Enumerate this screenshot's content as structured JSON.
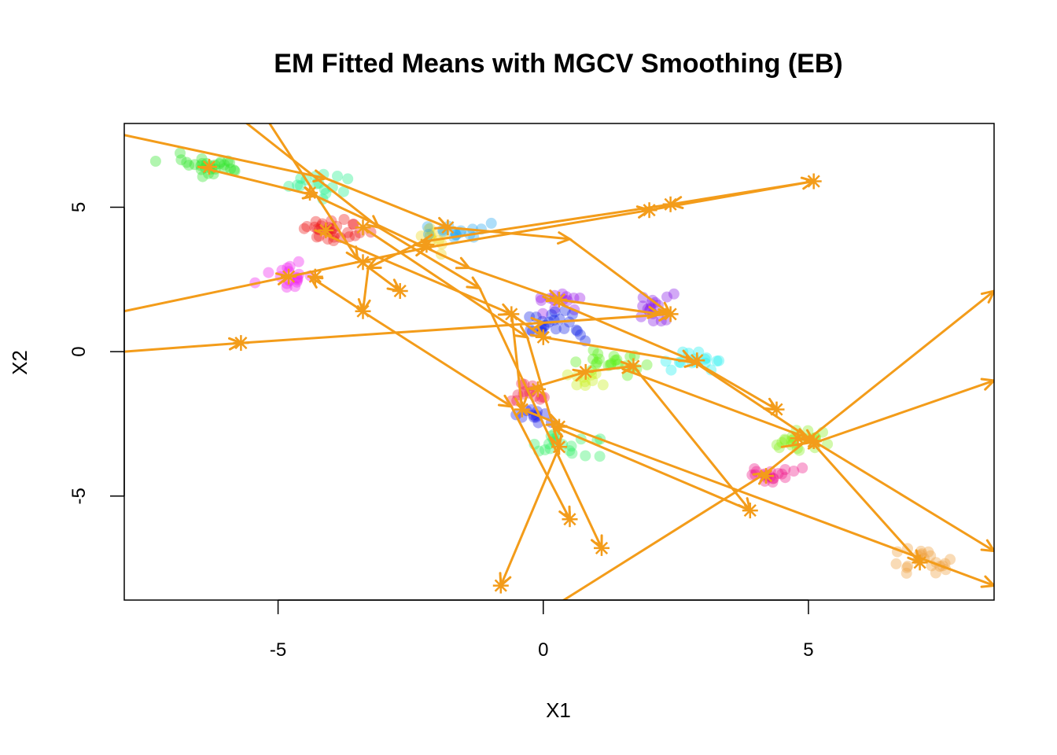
{
  "chart_data": {
    "type": "scatter",
    "title": "EM Fitted Means with MGCV Smoothing (EB)",
    "xlabel": "X1",
    "ylabel": "X2",
    "xlim": [
      -7.9,
      8.5
    ],
    "ylim": [
      -8.6,
      7.9
    ],
    "xticks": [
      -5,
      0,
      5
    ],
    "yticks": [
      -5,
      0,
      5
    ],
    "xtick_labels": [
      "-5",
      "0",
      "5"
    ],
    "ytick_labels": [
      "-5",
      "0",
      "5"
    ],
    "grid": false,
    "legend": "none",
    "path_color": "#F39C1A",
    "clusters": [
      {
        "color": "#33E62E",
        "center": [
          -6.3,
          6.4
        ],
        "spread": [
          0.55,
          0.3
        ],
        "n": 28
      },
      {
        "color": "#22F08C",
        "center": [
          -4.4,
          5.8
        ],
        "spread": [
          0.45,
          0.35
        ],
        "n": 16
      },
      {
        "color": "#F01C1C",
        "center": [
          -3.9,
          4.2
        ],
        "spread": [
          0.45,
          0.25
        ],
        "n": 30
      },
      {
        "color": "#F0D81A",
        "center": [
          -2.2,
          3.9
        ],
        "spread": [
          0.3,
          0.3
        ],
        "n": 12
      },
      {
        "color": "#2AA8F0",
        "center": [
          -1.5,
          4.2
        ],
        "spread": [
          0.45,
          0.2
        ],
        "n": 16
      },
      {
        "color": "#EE22EE",
        "center": [
          -4.8,
          2.6
        ],
        "spread": [
          0.35,
          0.3
        ],
        "n": 18
      },
      {
        "color": "#9A1CEA",
        "center": [
          0.3,
          1.8
        ],
        "spread": [
          0.4,
          0.3
        ],
        "n": 14
      },
      {
        "color": "#1A2AE8",
        "center": [
          0.3,
          0.9
        ],
        "spread": [
          0.45,
          0.35
        ],
        "n": 24
      },
      {
        "color": "#8A1CE8",
        "center": [
          2.2,
          1.4
        ],
        "spread": [
          0.35,
          0.35
        ],
        "n": 16
      },
      {
        "color": "#22F0F0",
        "center": [
          2.8,
          -0.3
        ],
        "spread": [
          0.35,
          0.3
        ],
        "n": 16
      },
      {
        "color": "#5CF01A",
        "center": [
          1.4,
          -0.4
        ],
        "spread": [
          0.45,
          0.25
        ],
        "n": 22
      },
      {
        "color": "#C8F01A",
        "center": [
          0.8,
          -0.9
        ],
        "spread": [
          0.35,
          0.25
        ],
        "n": 10
      },
      {
        "color": "#F0224A",
        "center": [
          -0.3,
          -1.5
        ],
        "spread": [
          0.3,
          0.25
        ],
        "n": 14
      },
      {
        "color": "#2222E8",
        "center": [
          -0.2,
          -2.2
        ],
        "spread": [
          0.3,
          0.25
        ],
        "n": 12
      },
      {
        "color": "#33F066",
        "center": [
          0.4,
          -3.2
        ],
        "spread": [
          0.45,
          0.3
        ],
        "n": 20
      },
      {
        "color": "#8AF022",
        "center": [
          4.8,
          -3.1
        ],
        "spread": [
          0.45,
          0.25
        ],
        "n": 22
      },
      {
        "color": "#F01C8C",
        "center": [
          4.2,
          -4.3
        ],
        "spread": [
          0.4,
          0.25
        ],
        "n": 20
      },
      {
        "color": "#F0A040",
        "center": [
          7.1,
          -7.3
        ],
        "spread": [
          0.45,
          0.35
        ],
        "n": 22
      }
    ],
    "segments": [
      [
        [
          -7.9,
          7.5
        ],
        [
          -4.1,
          6.0
        ],
        [
          -1.8,
          4.3
        ],
        [
          0.5,
          3.9
        ],
        [
          2.4,
          1.3
        ]
      ],
      [
        [
          -7.9,
          1.4
        ],
        [
          -4.8,
          2.6
        ],
        [
          -2.2,
          3.6
        ],
        [
          2.0,
          4.9
        ],
        [
          5.1,
          5.9
        ],
        [
          2.4,
          5.1
        ],
        [
          -2.3,
          3.8
        ],
        [
          -3.3,
          2.9
        ],
        [
          -3.4,
          1.4
        ],
        [
          -4.4,
          2.6
        ]
      ],
      [
        [
          -7.9,
          0.0
        ],
        [
          -5.7,
          0.3
        ],
        [
          0.0,
          1.0
        ],
        [
          2.4,
          1.3
        ]
      ],
      [
        [
          -5.3,
          8.3
        ],
        [
          -3.5,
          3.2
        ],
        [
          -2.7,
          2.1
        ]
      ],
      [
        [
          -6.0,
          8.5
        ],
        [
          -3.1,
          4.3
        ],
        [
          -1.2,
          2.2
        ],
        [
          1.1,
          -6.8
        ]
      ],
      [
        [
          -6.5,
          6.4
        ],
        [
          -4.3,
          5.4
        ],
        [
          -1.4,
          2.9
        ],
        [
          0.3,
          1.8
        ],
        [
          2.2,
          1.3
        ]
      ],
      [
        [
          -4.3,
          4.2
        ],
        [
          -0.6,
          1.3
        ],
        [
          0.0,
          0.5
        ],
        [
          2.9,
          -0.4
        ],
        [
          4.4,
          -2.0
        ]
      ],
      [
        [
          -3.4,
          4.3
        ],
        [
          -0.3,
          0.5
        ],
        [
          0.3,
          -3.3
        ],
        [
          -0.8,
          -8.1
        ]
      ],
      [
        [
          -3.5,
          1.5
        ],
        [
          -0.6,
          -1.9
        ],
        [
          0.5,
          -5.8
        ]
      ],
      [
        [
          -0.6,
          1.4
        ],
        [
          -0.4,
          -2.0
        ],
        [
          0.3,
          -2.5
        ],
        [
          8.5,
          -8.1
        ]
      ],
      [
        [
          -0.3,
          -1.3
        ],
        [
          0.8,
          -0.7
        ],
        [
          1.7,
          -0.5
        ],
        [
          3.9,
          -5.5
        ],
        [
          0.2,
          -2.6
        ]
      ],
      [
        [
          0.0,
          1.9
        ],
        [
          2.8,
          -0.3
        ],
        [
          5.1,
          -3.1
        ],
        [
          8.5,
          -6.9
        ]
      ],
      [
        [
          0.3,
          -8.7
        ],
        [
          4.2,
          -4.2
        ],
        [
          8.5,
          2.1
        ]
      ],
      [
        [
          4.5,
          -3.3
        ],
        [
          5.2,
          -3.1
        ],
        [
          8.5,
          -1.0
        ]
      ],
      [
        [
          1.5,
          -0.6
        ],
        [
          5.0,
          -3.0
        ],
        [
          7.1,
          -7.3
        ]
      ]
    ],
    "fitted_means": [
      [
        -6.3,
        6.4
      ],
      [
        -4.4,
        5.5
      ],
      [
        -4.1,
        4.2
      ],
      [
        -3.4,
        4.3
      ],
      [
        -1.8,
        4.3
      ],
      [
        -2.2,
        3.7
      ],
      [
        2.0,
        4.9
      ],
      [
        2.4,
        5.1
      ],
      [
        5.1,
        5.9
      ],
      [
        -4.8,
        2.6
      ],
      [
        -4.3,
        2.6
      ],
      [
        -3.4,
        3.1
      ],
      [
        -3.4,
        1.4
      ],
      [
        -2.7,
        2.1
      ],
      [
        -5.7,
        0.3
      ],
      [
        -0.6,
        1.3
      ],
      [
        0.3,
        1.8
      ],
      [
        2.4,
        1.3
      ],
      [
        0.0,
        0.5
      ],
      [
        2.9,
        -0.3
      ],
      [
        1.7,
        -0.5
      ],
      [
        0.8,
        -0.7
      ],
      [
        -0.1,
        -1.3
      ],
      [
        -0.4,
        -2.0
      ],
      [
        0.3,
        -2.6
      ],
      [
        0.3,
        -3.3
      ],
      [
        4.4,
        -2.0
      ],
      [
        4.8,
        -3.0
      ],
      [
        5.1,
        -3.1
      ],
      [
        4.2,
        -4.3
      ],
      [
        3.9,
        -5.5
      ],
      [
        0.5,
        -5.8
      ],
      [
        1.1,
        -6.8
      ],
      [
        -0.8,
        -8.1
      ],
      [
        7.1,
        -7.3
      ]
    ]
  }
}
